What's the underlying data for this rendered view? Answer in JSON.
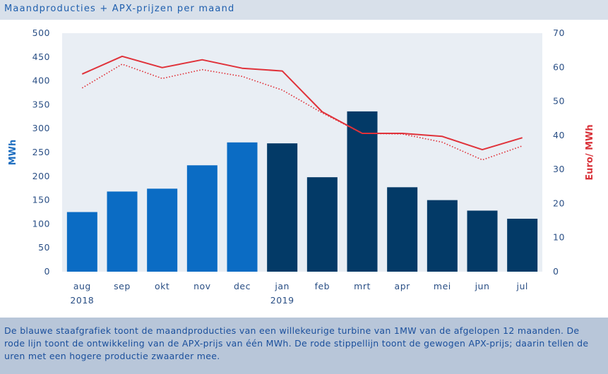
{
  "title": "Maandproducties + APX-prijzen per maand",
  "caption": "De blauwe staafgrafiek toont de maandproducties van een willekeurige turbine van 1MW van de afgelopen 12 maanden. De rode lijn toont de ontwikkeling van de APX-prijs van één MWh. De rode stippellijn toont de gewogen APX-prijs; daarin tellen de uren met een hogere productie zwaarder mee.",
  "chart_data": {
    "type": "bar",
    "categories": [
      "aug",
      "sep",
      "okt",
      "nov",
      "dec",
      "jan",
      "feb",
      "mrt",
      "apr",
      "mei",
      "jun",
      "jul"
    ],
    "category_sublabels": [
      "2018",
      "",
      "",
      "",
      "",
      "2019",
      "",
      "",
      "",
      "",
      "",
      ""
    ],
    "ylabel": "MWh",
    "y2label": "Euro/ MWh",
    "ylim": [
      0,
      500
    ],
    "y2lim": [
      0,
      70
    ],
    "yticks": [
      0,
      50,
      100,
      150,
      200,
      250,
      300,
      350,
      400,
      450,
      500
    ],
    "y2ticks": [
      0,
      10,
      20,
      30,
      40,
      50,
      60,
      70
    ],
    "grid": false,
    "series": [
      {
        "kind": "bar",
        "axis": "left",
        "values": [
          125,
          168,
          174,
          223,
          271,
          269,
          198,
          336,
          177,
          150,
          128,
          111
        ],
        "colors": [
          "#0b6cc4",
          "#0b6cc4",
          "#0b6cc4",
          "#0b6cc4",
          "#0b6cc4",
          "#033a67",
          "#033a67",
          "#033a67",
          "#033a67",
          "#033a67",
          "#033a67",
          "#033a67"
        ]
      },
      {
        "kind": "line",
        "axis": "right",
        "style": "solid",
        "color": "#e0323a",
        "values": [
          58.0,
          63.2,
          59.9,
          62.2,
          59.7,
          58.9,
          46.9,
          40.6,
          40.6,
          39.7,
          35.8,
          39.3
        ]
      },
      {
        "kind": "line",
        "axis": "right",
        "style": "dotted",
        "color": "#e0323a",
        "values": [
          53.9,
          60.9,
          56.7,
          59.3,
          57.3,
          53.3,
          46.6,
          40.6,
          40.4,
          38.0,
          32.8,
          36.9
        ]
      }
    ]
  }
}
